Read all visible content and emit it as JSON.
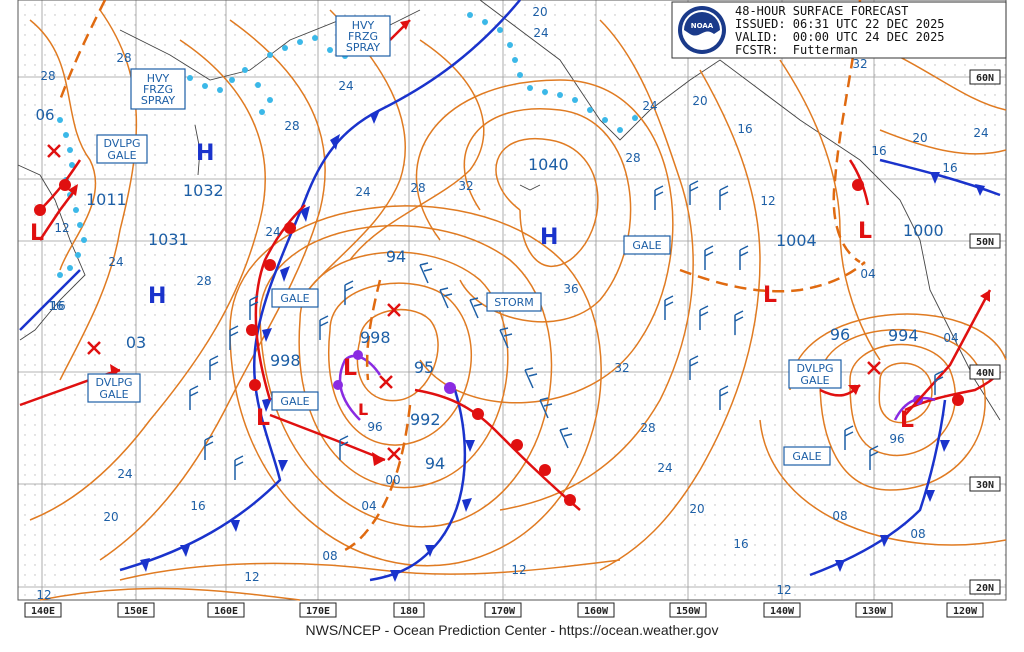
{
  "header": {
    "title": "48-HOUR SURFACE FORECAST",
    "issued": "ISSUED: 06:31 UTC 22 DEC 2025",
    "valid": "VALID:  00:00 UTC 24 DEC 2025",
    "forecaster": "FCSTR:  Futterman",
    "logo_text": "NOAA"
  },
  "footer": "NWS/NCEP - Ocean Prediction Center - https://ocean.weather.gov",
  "lon_labels": [
    "140E",
    "150E",
    "160E",
    "170E",
    "180",
    "170W",
    "160W",
    "150W",
    "140W",
    "130W",
    "120W"
  ],
  "lat_labels": [
    "60N",
    "50N",
    "40N",
    "30N",
    "20N"
  ],
  "centers": [
    {
      "type": "H",
      "pressure": "1032"
    },
    {
      "type": "H",
      "pressure": "1031"
    },
    {
      "type": "H",
      "pressure": "1040"
    },
    {
      "type": "L",
      "pressure": "1011"
    },
    {
      "type": "L",
      "pressure": "998"
    },
    {
      "type": "L",
      "pressure": "998"
    },
    {
      "type": "L",
      "pressure": "992"
    },
    {
      "type": "L",
      "pressure": "1004"
    },
    {
      "type": "L",
      "pressure": "1000"
    },
    {
      "type": "L",
      "pressure": "994"
    }
  ],
  "warnings": [
    "HVY FRZG SPRAY",
    "HVY FRZG SPRAY",
    "DVLPG GALE",
    "DVLPG GALE",
    "DVLPG GALE",
    "GALE",
    "GALE",
    "GALE",
    "GALE",
    "STORM"
  ],
  "isobar_labels": [
    "28",
    "06",
    "28",
    "24",
    "28",
    "24",
    "16",
    "12",
    "20",
    "24",
    "24",
    "28",
    "32",
    "36",
    "28",
    "32",
    "20",
    "16",
    "12",
    "24",
    "16",
    "32",
    "20",
    "24",
    "16",
    "12",
    "16",
    "20",
    "24",
    "28",
    "08",
    "08",
    "00",
    "04",
    "12",
    "16",
    "20",
    "24",
    "04",
    "08",
    "96",
    "96",
    "94",
    "94",
    "95",
    "03",
    "28",
    "24",
    "04",
    "16",
    "12",
    "1032",
    "12"
  ],
  "colors": {
    "isobar": "#e07b22",
    "cold_front": "#1a33cc",
    "warm_front": "#e01010",
    "occluded": "#8a2be2",
    "ice": "#3bb8e8",
    "label_blue": "#1d5fa6",
    "grid": "#8a8a8a"
  }
}
